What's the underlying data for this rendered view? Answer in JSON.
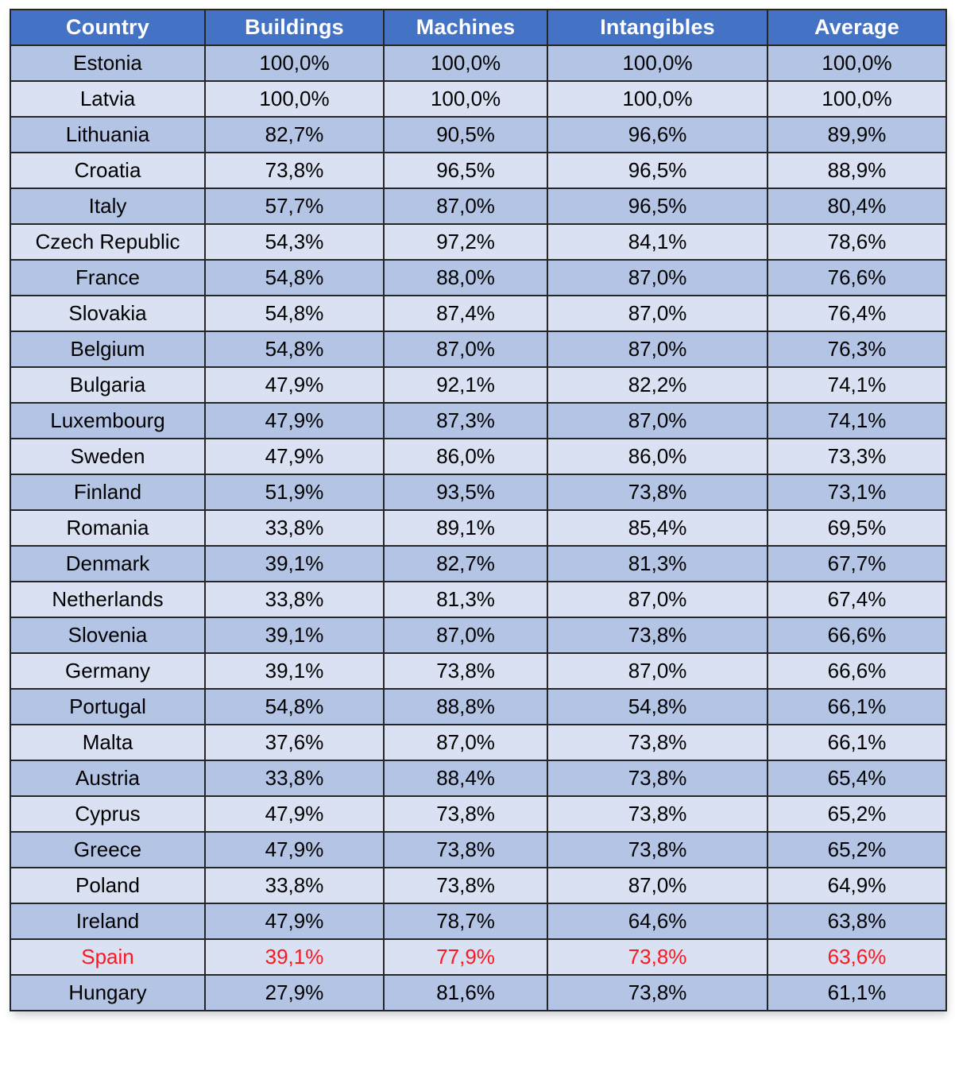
{
  "colors": {
    "header_bg": "#4472c4",
    "header_text": "#ffffff",
    "row_dark": "#b3c4e5",
    "row_light": "#d9e1f2",
    "body_text": "#000000",
    "highlight_text": "#fb1821",
    "border": "#262626"
  },
  "table": {
    "columns": [
      "Country",
      "Buildings",
      "Machines",
      "Intangibles",
      "Average"
    ],
    "rows": [
      {
        "country": "Estonia",
        "buildings": "100,0%",
        "machines": "100,0%",
        "intangibles": "100,0%",
        "average": "100,0%",
        "highlight": false
      },
      {
        "country": "Latvia",
        "buildings": "100,0%",
        "machines": "100,0%",
        "intangibles": "100,0%",
        "average": "100,0%",
        "highlight": false
      },
      {
        "country": "Lithuania",
        "buildings": "82,7%",
        "machines": "90,5%",
        "intangibles": "96,6%",
        "average": "89,9%",
        "highlight": false
      },
      {
        "country": "Croatia",
        "buildings": "73,8%",
        "machines": "96,5%",
        "intangibles": "96,5%",
        "average": "88,9%",
        "highlight": false
      },
      {
        "country": "Italy",
        "buildings": "57,7%",
        "machines": "87,0%",
        "intangibles": "96,5%",
        "average": "80,4%",
        "highlight": false
      },
      {
        "country": "Czech Republic",
        "buildings": "54,3%",
        "machines": "97,2%",
        "intangibles": "84,1%",
        "average": "78,6%",
        "highlight": false
      },
      {
        "country": "France",
        "buildings": "54,8%",
        "machines": "88,0%",
        "intangibles": "87,0%",
        "average": "76,6%",
        "highlight": false
      },
      {
        "country": "Slovakia",
        "buildings": "54,8%",
        "machines": "87,4%",
        "intangibles": "87,0%",
        "average": "76,4%",
        "highlight": false
      },
      {
        "country": "Belgium",
        "buildings": "54,8%",
        "machines": "87,0%",
        "intangibles": "87,0%",
        "average": "76,3%",
        "highlight": false
      },
      {
        "country": "Bulgaria",
        "buildings": "47,9%",
        "machines": "92,1%",
        "intangibles": "82,2%",
        "average": "74,1%",
        "highlight": false
      },
      {
        "country": "Luxembourg",
        "buildings": "47,9%",
        "machines": "87,3%",
        "intangibles": "87,0%",
        "average": "74,1%",
        "highlight": false
      },
      {
        "country": "Sweden",
        "buildings": "47,9%",
        "machines": "86,0%",
        "intangibles": "86,0%",
        "average": "73,3%",
        "highlight": false
      },
      {
        "country": "Finland",
        "buildings": "51,9%",
        "machines": "93,5%",
        "intangibles": "73,8%",
        "average": "73,1%",
        "highlight": false
      },
      {
        "country": "Romania",
        "buildings": "33,8%",
        "machines": "89,1%",
        "intangibles": "85,4%",
        "average": "69,5%",
        "highlight": false
      },
      {
        "country": "Denmark",
        "buildings": "39,1%",
        "machines": "82,7%",
        "intangibles": "81,3%",
        "average": "67,7%",
        "highlight": false
      },
      {
        "country": "Netherlands",
        "buildings": "33,8%",
        "machines": "81,3%",
        "intangibles": "87,0%",
        "average": "67,4%",
        "highlight": false
      },
      {
        "country": "Slovenia",
        "buildings": "39,1%",
        "machines": "87,0%",
        "intangibles": "73,8%",
        "average": "66,6%",
        "highlight": false
      },
      {
        "country": "Germany",
        "buildings": "39,1%",
        "machines": "73,8%",
        "intangibles": "87,0%",
        "average": "66,6%",
        "highlight": false
      },
      {
        "country": "Portugal",
        "buildings": "54,8%",
        "machines": "88,8%",
        "intangibles": "54,8%",
        "average": "66,1%",
        "highlight": false
      },
      {
        "country": "Malta",
        "buildings": "37,6%",
        "machines": "87,0%",
        "intangibles": "73,8%",
        "average": "66,1%",
        "highlight": false
      },
      {
        "country": "Austria",
        "buildings": "33,8%",
        "machines": "88,4%",
        "intangibles": "73,8%",
        "average": "65,4%",
        "highlight": false
      },
      {
        "country": "Cyprus",
        "buildings": "47,9%",
        "machines": "73,8%",
        "intangibles": "73,8%",
        "average": "65,2%",
        "highlight": false
      },
      {
        "country": "Greece",
        "buildings": "47,9%",
        "machines": "73,8%",
        "intangibles": "73,8%",
        "average": "65,2%",
        "highlight": false
      },
      {
        "country": "Poland",
        "buildings": "33,8%",
        "machines": "73,8%",
        "intangibles": "87,0%",
        "average": "64,9%",
        "highlight": false
      },
      {
        "country": "Ireland",
        "buildings": "47,9%",
        "machines": "78,7%",
        "intangibles": "64,6%",
        "average": "63,8%",
        "highlight": false
      },
      {
        "country": "Spain",
        "buildings": "39,1%",
        "machines": "77,9%",
        "intangibles": "73,8%",
        "average": "63,6%",
        "highlight": true
      },
      {
        "country": "Hungary",
        "buildings": "27,9%",
        "machines": "81,6%",
        "intangibles": "73,8%",
        "average": "61,1%",
        "highlight": false
      }
    ]
  }
}
